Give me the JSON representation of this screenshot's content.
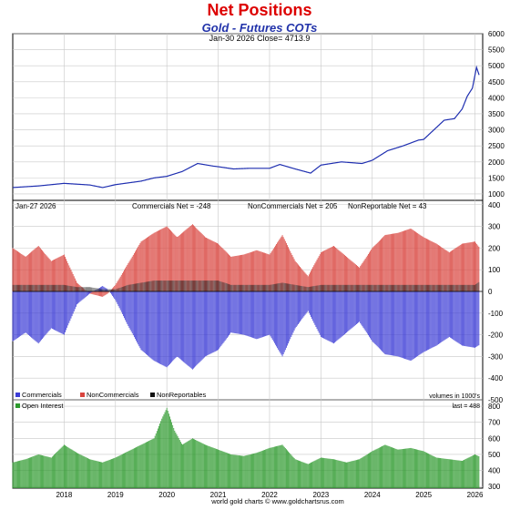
{
  "header": {
    "title": "Net Positions",
    "subtitle": "Gold - Futures COTs",
    "price_info": "Jan-30  2026   Close= 4713.9"
  },
  "footer": {
    "credit": "world gold charts © www.goldchartsrus.com"
  },
  "colors": {
    "title": "#dd0000",
    "subtitle": "#2233aa",
    "price_line": "#1f2fb0",
    "commercials": "#3d3dd6",
    "noncommercials": "#d9443e",
    "nonreportables": "#111111",
    "open_interest": "#2e9a2e",
    "grid": "#c8c8c8"
  },
  "chart_data": [
    {
      "type": "line",
      "panel": "price",
      "y_ticks": [
        1000,
        1500,
        2000,
        2500,
        3000,
        3500,
        4000,
        4500,
        5000,
        5500,
        6000
      ],
      "ylim": [
        800,
        6000
      ],
      "x": [
        2017.0,
        2017.5,
        2018.0,
        2018.5,
        2018.75,
        2019.0,
        2019.5,
        2019.75,
        2020.0,
        2020.3,
        2020.6,
        2020.9,
        2021.0,
        2021.3,
        2021.6,
        2022.0,
        2022.2,
        2022.5,
        2022.8,
        2023.0,
        2023.4,
        2023.8,
        2024.0,
        2024.3,
        2024.6,
        2024.9,
        2025.0,
        2025.2,
        2025.4,
        2025.6,
        2025.75,
        2025.85,
        2025.95,
        2026.03,
        2026.08
      ],
      "y": [
        1200,
        1250,
        1330,
        1280,
        1200,
        1290,
        1400,
        1500,
        1550,
        1700,
        1950,
        1870,
        1850,
        1780,
        1800,
        1800,
        1920,
        1780,
        1650,
        1900,
        2000,
        1950,
        2050,
        2350,
        2500,
        2680,
        2700,
        3000,
        3300,
        3350,
        3650,
        4050,
        4300,
        4950,
        4713.9
      ]
    },
    {
      "type": "bar",
      "panel": "net_positions",
      "label_date": "Jan-27  2026",
      "legend_values": [
        "Commercials Net = -248",
        "NonCommercials Net = 205",
        "NonReportable Net = 43"
      ],
      "legend": [
        "Commercials",
        "NonCommercials",
        "NonReportables"
      ],
      "y_ticks": [
        -500,
        -400,
        -300,
        -200,
        -100,
        0,
        100,
        200,
        300,
        400
      ],
      "ylim": [
        -500,
        420
      ],
      "note": "volumes in 1000's",
      "x": [
        2017.0,
        2017.25,
        2017.5,
        2017.75,
        2018.0,
        2018.25,
        2018.5,
        2018.75,
        2018.85,
        2019.0,
        2019.25,
        2019.5,
        2019.75,
        2020.0,
        2020.2,
        2020.5,
        2020.75,
        2021.0,
        2021.25,
        2021.5,
        2021.75,
        2022.0,
        2022.25,
        2022.5,
        2022.75,
        2023.0,
        2023.25,
        2023.5,
        2023.75,
        2024.0,
        2024.25,
        2024.5,
        2024.75,
        2025.0,
        2025.25,
        2025.5,
        2025.75,
        2026.0,
        2026.08
      ],
      "series": [
        {
          "name": "NonCommercials",
          "values": [
            200,
            160,
            210,
            140,
            170,
            40,
            -10,
            -25,
            -10,
            30,
            130,
            230,
            270,
            300,
            250,
            310,
            250,
            220,
            160,
            170,
            190,
            170,
            260,
            140,
            70,
            180,
            210,
            160,
            110,
            200,
            260,
            270,
            290,
            250,
            220,
            180,
            220,
            230,
            205
          ]
        },
        {
          "name": "Commercials",
          "values": [
            -230,
            -190,
            -240,
            -170,
            -200,
            -60,
            -10,
            25,
            10,
            -40,
            -160,
            -270,
            -320,
            -350,
            -300,
            -360,
            -300,
            -270,
            -190,
            -200,
            -220,
            -200,
            -300,
            -170,
            -90,
            -210,
            -240,
            -190,
            -140,
            -230,
            -290,
            -300,
            -320,
            -280,
            -250,
            -210,
            -250,
            -260,
            -248
          ]
        },
        {
          "name": "NonReportables",
          "values": [
            30,
            30,
            30,
            30,
            30,
            20,
            20,
            10,
            10,
            10,
            30,
            40,
            50,
            50,
            50,
            50,
            50,
            50,
            30,
            30,
            30,
            30,
            40,
            30,
            20,
            30,
            30,
            30,
            30,
            30,
            30,
            30,
            30,
            30,
            30,
            30,
            30,
            30,
            43
          ]
        }
      ]
    },
    {
      "type": "bar",
      "panel": "open_interest",
      "legend": [
        "Open Interest"
      ],
      "last_label": "last = 488",
      "y_ticks": [
        300,
        400,
        500,
        600,
        700,
        800
      ],
      "ylim": [
        290,
        840
      ],
      "x_ticks": [
        "2018",
        "2019",
        "2020",
        "2021",
        "2022",
        "2023",
        "2024",
        "2025",
        "2026"
      ],
      "x": [
        2017.0,
        2017.25,
        2017.5,
        2017.75,
        2018.0,
        2018.25,
        2018.5,
        2018.75,
        2019.0,
        2019.25,
        2019.5,
        2019.75,
        2019.9,
        2020.0,
        2020.15,
        2020.3,
        2020.5,
        2020.75,
        2021.0,
        2021.25,
        2021.5,
        2021.75,
        2022.0,
        2022.25,
        2022.5,
        2022.75,
        2023.0,
        2023.25,
        2023.5,
        2023.75,
        2024.0,
        2024.25,
        2024.5,
        2024.75,
        2025.0,
        2025.25,
        2025.5,
        2025.75,
        2026.0,
        2026.08
      ],
      "values": [
        450,
        470,
        500,
        480,
        560,
        510,
        470,
        450,
        480,
        520,
        560,
        600,
        720,
        790,
        650,
        560,
        600,
        560,
        530,
        500,
        490,
        510,
        540,
        560,
        470,
        440,
        480,
        470,
        450,
        470,
        520,
        560,
        530,
        540,
        520,
        480,
        470,
        460,
        500,
        488
      ]
    }
  ]
}
